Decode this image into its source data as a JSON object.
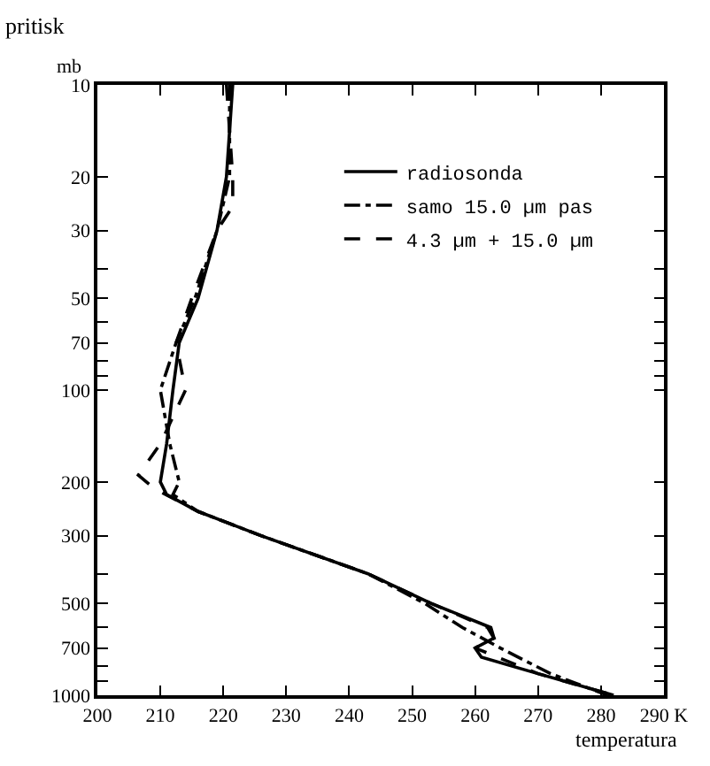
{
  "chart_data": {
    "type": "line",
    "ylabel": "pritisk",
    "xlabel": "temperatura",
    "annotations": [
      "mb"
    ],
    "log": "y",
    "xlim": [
      200,
      290
    ],
    "xticks": [
      200,
      210,
      220,
      230,
      240,
      250,
      260,
      270,
      280,
      {
        "value": 290,
        "label": "290 K"
      }
    ],
    "ylim": [
      1000,
      10
    ],
    "yticks": [
      10,
      20,
      30,
      {
        "value": 40,
        "label": null
      },
      50,
      {
        "value": 60,
        "label": null
      },
      70,
      {
        "value": 80,
        "label": null
      },
      {
        "value": 90,
        "label": null
      },
      100,
      200,
      300,
      {
        "value": 400,
        "label": null
      },
      500,
      {
        "value": 600,
        "label": null
      },
      700,
      {
        "value": 800,
        "label": null
      },
      {
        "value": 900,
        "label": null
      },
      1000
    ],
    "legend": "top right",
    "marker": "none",
    "series": [
      {
        "name": "radiosonda",
        "color": "#000000",
        "line_style": "solid",
        "x": [
          221.5,
          220.5,
          219,
          216,
          213,
          212,
          211,
          210,
          211,
          216,
          226,
          243,
          253,
          262.5,
          263,
          260,
          261,
          270,
          282
        ],
        "values": [
          10,
          20,
          30,
          50,
          70,
          100,
          150,
          200,
          220,
          250,
          300,
          400,
          500,
          600,
          650,
          700,
          750,
          850,
          1000
        ]
      },
      {
        "name": "samo 15.0 µm pas",
        "color": "#000000",
        "line_style": "dashdot",
        "x": [
          221,
          221,
          219,
          215.5,
          212.5,
          210,
          211.5,
          213,
          212,
          216,
          226,
          243,
          252,
          258,
          264,
          272,
          281
        ],
        "values": [
          10,
          20,
          30,
          50,
          70,
          100,
          150,
          200,
          220,
          250,
          300,
          400,
          500,
          600,
          700,
          850,
          1000
        ]
      },
      {
        "name": "4.3 µm + 15.0 µm",
        "color": "#000000",
        "line_style": "dashed",
        "x": [
          220.5,
          221.5,
          221.5,
          219,
          215,
          212.5,
          214,
          210,
          206.5,
          209,
          216,
          226,
          243,
          253,
          262,
          263,
          260,
          270,
          282
        ],
        "values": [
          10,
          20,
          25,
          30,
          50,
          70,
          100,
          150,
          190,
          210,
          250,
          300,
          400,
          500,
          600,
          650,
          700,
          850,
          1000
        ]
      }
    ]
  }
}
